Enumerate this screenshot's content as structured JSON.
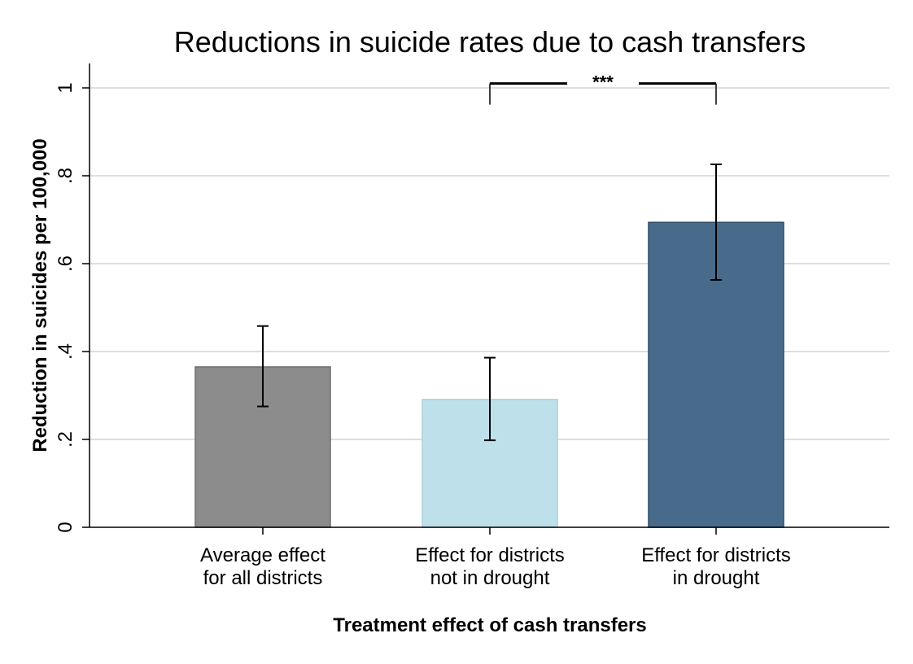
{
  "chart_data": {
    "type": "bar",
    "title": "Reductions in suicide rates due to cash transfers",
    "xlabel": "Treatment effect of cash transfers",
    "ylabel": "Reduction in suicides per 100,000",
    "ylim": [
      0,
      1.05
    ],
    "yticks": [
      {
        "value": 0,
        "label": "0"
      },
      {
        "value": 0.2,
        "label": ".2"
      },
      {
        "value": 0.4,
        "label": ".4"
      },
      {
        "value": 0.6,
        "label": ".6"
      },
      {
        "value": 0.8,
        "label": ".8"
      },
      {
        "value": 1,
        "label": "1"
      }
    ],
    "grid": true,
    "categories": [
      {
        "lines": [
          "Average effect",
          "for all districts"
        ],
        "value": 0.365,
        "ci_low": 0.275,
        "ci_high": 0.458,
        "color": "#8c8c8c",
        "edge": "#6e6e6e"
      },
      {
        "lines": [
          "Effect for districts",
          "not in drought"
        ],
        "value": 0.291,
        "ci_low": 0.198,
        "ci_high": 0.386,
        "color": "#bee0ea",
        "edge": "#a9d2de"
      },
      {
        "lines": [
          "Effect for districts",
          "in drought"
        ],
        "value": 0.694,
        "ci_low": 0.563,
        "ci_high": 0.826,
        "color": "#486b8c",
        "edge": "#2f4c68"
      }
    ],
    "annotations": [
      {
        "type": "significance-bracket",
        "from": 1,
        "to": 2,
        "label": "***",
        "y": 1.01
      }
    ]
  }
}
